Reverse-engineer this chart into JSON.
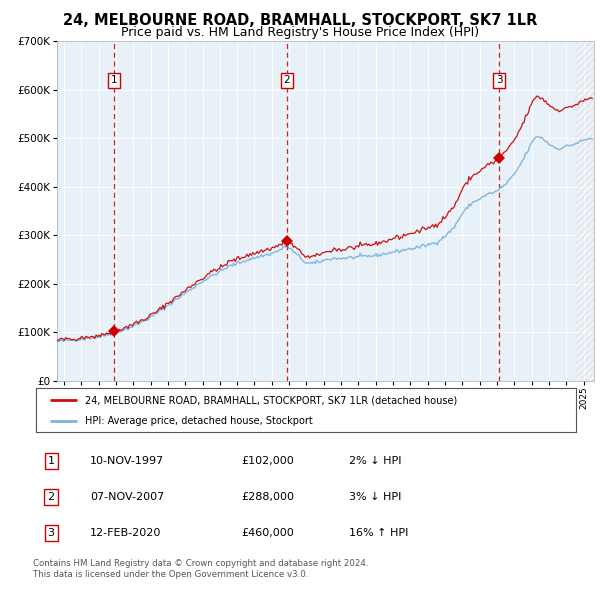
{
  "title": "24, MELBOURNE ROAD, BRAMHALL, STOCKPORT, SK7 1LR",
  "subtitle": "Price paid vs. HM Land Registry's House Price Index (HPI)",
  "title_fontsize": 10.5,
  "subtitle_fontsize": 9,
  "background_color": "#e8f0f8",
  "hpi_line_color": "#7ab4e0",
  "price_line_color": "#cc1111",
  "marker_color": "#cc0000",
  "vline_color": "#cc0000",
  "ylim": [
    0,
    700000
  ],
  "yticks": [
    0,
    100000,
    200000,
    300000,
    400000,
    500000,
    600000,
    700000
  ],
  "xlim_start": 1994.6,
  "xlim_end": 2025.6,
  "transactions": [
    {
      "year": 1997.87,
      "price": 102000,
      "label": "1"
    },
    {
      "year": 2007.87,
      "price": 288000,
      "label": "2"
    },
    {
      "year": 2020.12,
      "price": 460000,
      "label": "3"
    }
  ],
  "legend_line1": "24, MELBOURNE ROAD, BRAMHALL, STOCKPORT, SK7 1LR (detached house)",
  "legend_line2": "HPI: Average price, detached house, Stockport",
  "table_rows": [
    {
      "num": "1",
      "date": "10-NOV-1997",
      "price": "£102,000",
      "hpi": "2% ↓ HPI"
    },
    {
      "num": "2",
      "date": "07-NOV-2007",
      "price": "£288,000",
      "hpi": "3% ↓ HPI"
    },
    {
      "num": "3",
      "date": "12-FEB-2020",
      "price": "£460,000",
      "hpi": "16% ↑ HPI"
    }
  ],
  "footer": "Contains HM Land Registry data © Crown copyright and database right 2024.\nThis data is licensed under the Open Government Licence v3.0."
}
